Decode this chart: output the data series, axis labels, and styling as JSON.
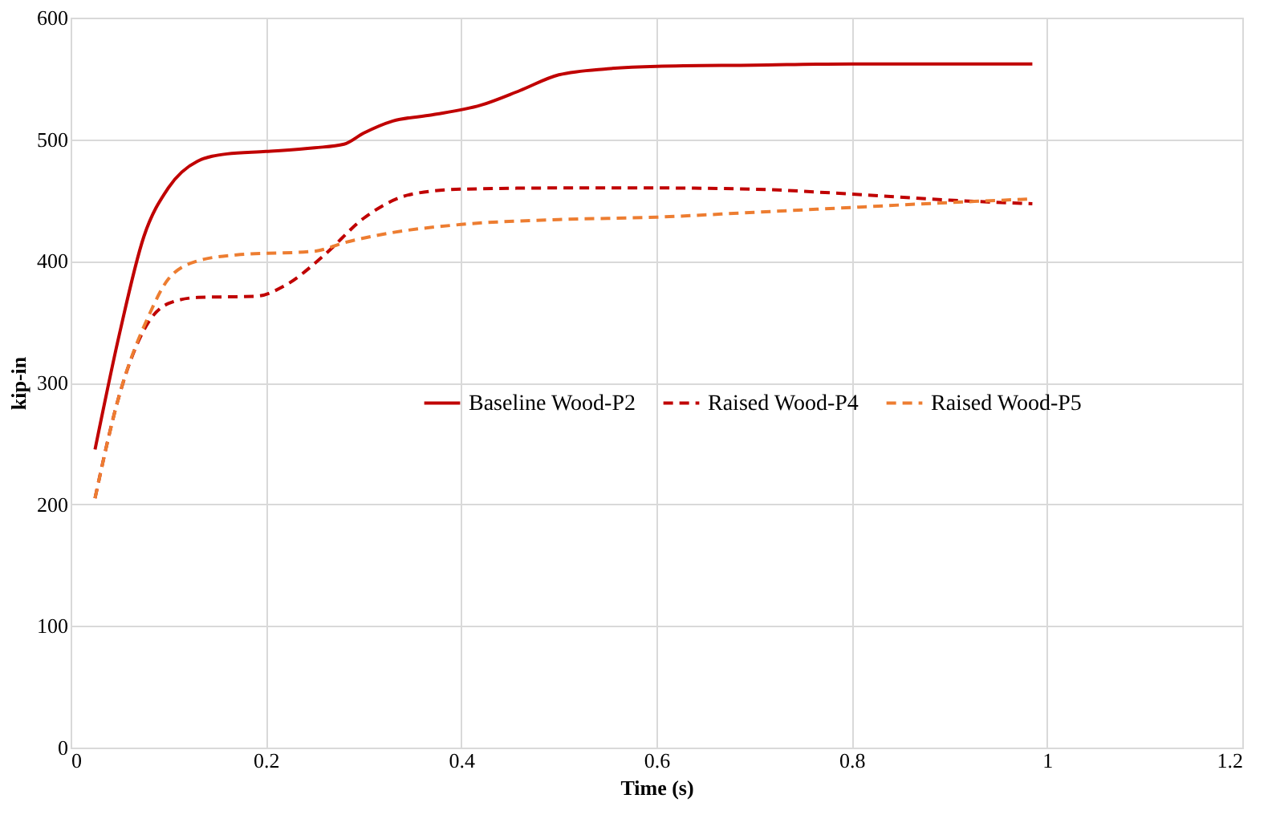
{
  "chart_data": {
    "type": "line",
    "xlabel": "Time (s)",
    "ylabel": "kip-in",
    "xlim": [
      0,
      1.2
    ],
    "xticks": [
      0,
      0.2,
      0.4,
      0.6,
      0.8,
      1,
      1.2
    ],
    "ylim": [
      0,
      600
    ],
    "yticks": [
      0,
      100,
      200,
      300,
      400,
      500,
      600
    ],
    "grid": true,
    "legend": "right",
    "marker": "none",
    "series": [
      {
        "name": "Baseline Wood-P2",
        "color": "#c00000",
        "line_style": "solid",
        "x": [
          0.025,
          0.05,
          0.075,
          0.1,
          0.13,
          0.16,
          0.2,
          0.25,
          0.28,
          0.3,
          0.33,
          0.37,
          0.42,
          0.46,
          0.5,
          0.55,
          0.6,
          0.7,
          0.8,
          0.985
        ],
        "values": [
          245,
          340,
          420,
          460,
          482,
          488,
          490,
          493,
          496,
          505,
          515,
          520,
          528,
          540,
          553,
          558,
          560,
          561,
          562,
          562
        ]
      },
      {
        "name": "Raised Wood-P4",
        "color": "#c00000",
        "line_style": "dashed",
        "x": [
          0.025,
          0.05,
          0.08,
          0.1,
          0.13,
          0.19,
          0.22,
          0.26,
          0.3,
          0.35,
          0.4,
          0.5,
          0.6,
          0.7,
          0.8,
          0.9,
          0.985
        ],
        "values": [
          205,
          290,
          350,
          365,
          370,
          371,
          380,
          405,
          435,
          455,
          459,
          460,
          460,
          459,
          455,
          450,
          447
        ]
      },
      {
        "name": "Raised Wood-P5",
        "color": "#ed7d31",
        "line_style": "dashed",
        "x": [
          0.025,
          0.05,
          0.08,
          0.1,
          0.13,
          0.17,
          0.25,
          0.28,
          0.32,
          0.4,
          0.5,
          0.6,
          0.7,
          0.8,
          0.9,
          0.985
        ],
        "values": [
          205,
          290,
          355,
          385,
          400,
          405,
          408,
          415,
          422,
          430,
          434,
          436,
          440,
          444,
          448,
          451
        ]
      }
    ]
  }
}
